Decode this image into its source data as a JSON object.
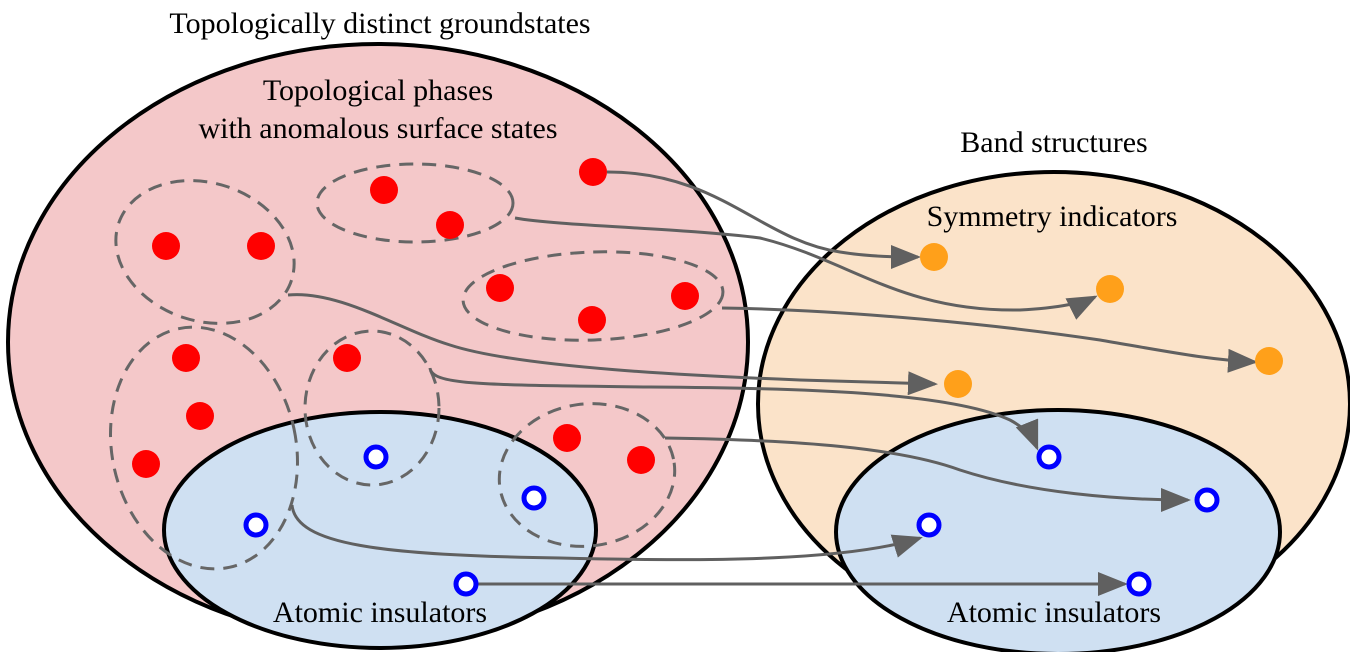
{
  "labels": {
    "groundstates_title": "Topologically distinct groundstates",
    "topo_phases_line1": "Topological phases",
    "topo_phases_line2": "with anomalous surface states",
    "band_structures_title": "Band structures",
    "symmetry_indicators": "Symmetry indicators",
    "atomic_insulators_left": "Atomic insulators",
    "atomic_insulators_right": "Atomic insulators"
  },
  "colors": {
    "groundstates_fill": "#f4c8c9",
    "band_structures_fill": "#fbe3c9",
    "atomic_fill": "#cfe0f2",
    "topological_point": "#ff0000",
    "indicator_point": "#ffa01a",
    "atomic_point": "#0000ff",
    "arrow": "#606060",
    "dashed_group": "#666666"
  }
}
